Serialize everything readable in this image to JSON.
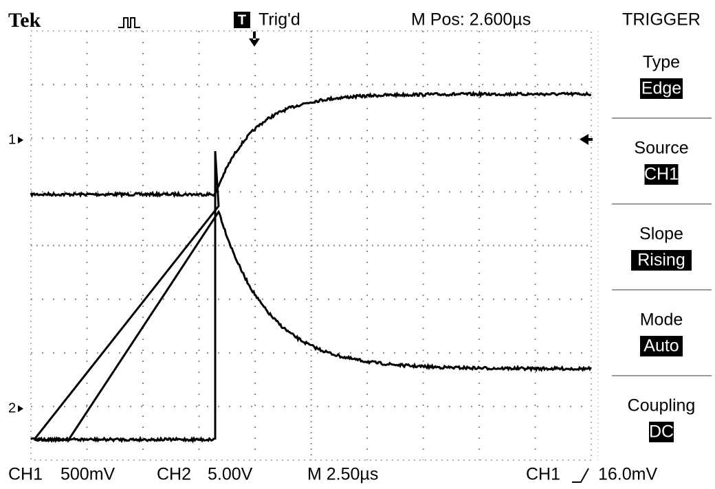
{
  "header": {
    "brand": "Tek",
    "trigger_badge": "T",
    "status": "Trig'd",
    "position": "M Pos: 2.600µs"
  },
  "markers": {
    "ch1": "1",
    "ch2": "2"
  },
  "menu": {
    "title": "TRIGGER",
    "items": [
      {
        "label": "Type",
        "value": "Edge"
      },
      {
        "label": "Source",
        "value": "CH1"
      },
      {
        "label": "Slope",
        "value": "Rising"
      },
      {
        "label": "Mode",
        "value": "Auto"
      },
      {
        "label": "Coupling",
        "value": "DC"
      }
    ]
  },
  "footer": {
    "ch1": "CH1",
    "ch1_scale": "500mV",
    "ch2": "CH2",
    "ch2_scale": "5.00V",
    "timebase": "M 2.50µs",
    "trigger_source": "CH1",
    "trigger_level": "16.0mV"
  }
}
